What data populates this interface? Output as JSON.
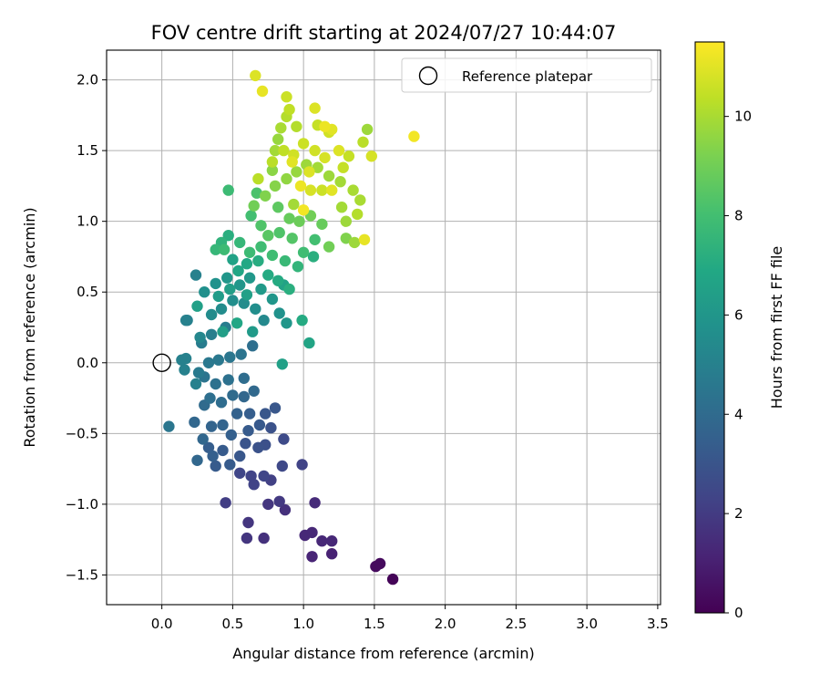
{
  "chart_data": {
    "type": "scatter",
    "title": "FOV centre drift starting at 2024/07/27 10:44:07",
    "xlabel": "Angular distance from reference (arcmin)",
    "ylabel": "Rotation from reference (arcmin)",
    "colorbar_label": "Hours from first FF file",
    "xlim": [
      -0.39,
      3.52
    ],
    "ylim": [
      -1.71,
      2.21
    ],
    "x_ticks": [
      0.0,
      0.5,
      1.0,
      1.5,
      2.0,
      2.5,
      3.0,
      3.5
    ],
    "x_tick_labels": [
      "0.0",
      "0.5",
      "1.0",
      "1.5",
      "2.0",
      "2.5",
      "3.0",
      "3.5"
    ],
    "y_ticks": [
      -1.5,
      -1.0,
      -0.5,
      0.0,
      0.5,
      1.0,
      1.5,
      2.0
    ],
    "y_tick_labels": [
      "−1.5",
      "−1.0",
      "−0.5",
      "0.0",
      "0.5",
      "1.0",
      "1.5",
      "2.0"
    ],
    "color_range": [
      0,
      11.5
    ],
    "colorbar_ticks": [
      0,
      2,
      4,
      6,
      8,
      10
    ],
    "colorbar_tick_labels": [
      "0",
      "2",
      "4",
      "6",
      "8",
      "10"
    ],
    "colormap": "viridis",
    "grid": true,
    "legend": {
      "placement": "top-right",
      "entries": [
        {
          "label": "Reference platepar",
          "marker": "open-circle"
        }
      ]
    },
    "reference_point": {
      "x": 0.0,
      "y": 0.0
    },
    "points": [
      [
        1.63,
        -1.53,
        0.1
      ],
      [
        1.51,
        -1.44,
        0.3
      ],
      [
        1.54,
        -1.42,
        0.3
      ],
      [
        1.06,
        -1.37,
        1.2
      ],
      [
        1.2,
        -1.35,
        1.1
      ],
      [
        1.01,
        -1.22,
        1.3
      ],
      [
        1.06,
        -1.2,
        1.3
      ],
      [
        1.13,
        -1.26,
        1.3
      ],
      [
        1.2,
        -1.26,
        1.3
      ],
      [
        0.72,
        -1.24,
        1.6
      ],
      [
        0.6,
        -1.24,
        1.8
      ],
      [
        0.61,
        -1.13,
        1.8
      ],
      [
        1.08,
        -0.99,
        1.4
      ],
      [
        0.45,
        -0.99,
        2.1
      ],
      [
        0.75,
        -1.0,
        1.8
      ],
      [
        0.83,
        -0.98,
        1.9
      ],
      [
        0.87,
        -1.04,
        1.6
      ],
      [
        0.55,
        -0.78,
        2.4
      ],
      [
        0.63,
        -0.8,
        2.3
      ],
      [
        0.65,
        -0.86,
        2.3
      ],
      [
        0.72,
        -0.8,
        2.4
      ],
      [
        0.77,
        -0.83,
        2.2
      ],
      [
        0.85,
        -0.73,
        2.5
      ],
      [
        0.99,
        -0.72,
        2.3
      ],
      [
        0.86,
        -0.54,
        2.6
      ],
      [
        0.73,
        -0.58,
        2.8
      ],
      [
        0.68,
        -0.6,
        2.9
      ],
      [
        0.59,
        -0.57,
        3.0
      ],
      [
        0.55,
        -0.66,
        3.1
      ],
      [
        0.48,
        -0.72,
        3.3
      ],
      [
        0.38,
        -0.73,
        3.3
      ],
      [
        0.33,
        -0.6,
        3.4
      ],
      [
        0.36,
        -0.66,
        3.5
      ],
      [
        0.25,
        -0.69,
        3.8
      ],
      [
        0.29,
        -0.54,
        3.8
      ],
      [
        0.43,
        -0.62,
        3.3
      ],
      [
        0.49,
        -0.51,
        3.5
      ],
      [
        0.61,
        -0.48,
        3.3
      ],
      [
        0.69,
        -0.44,
        3.2
      ],
      [
        0.77,
        -0.46,
        2.9
      ],
      [
        0.62,
        -0.36,
        3.4
      ],
      [
        0.53,
        -0.36,
        3.6
      ],
      [
        0.43,
        -0.44,
        3.7
      ],
      [
        0.35,
        -0.45,
        3.7
      ],
      [
        0.23,
        -0.42,
        3.8
      ],
      [
        0.3,
        -0.3,
        4.0
      ],
      [
        0.34,
        -0.25,
        4.2
      ],
      [
        0.42,
        -0.28,
        4.1
      ],
      [
        0.5,
        -0.23,
        4.0
      ],
      [
        0.58,
        -0.24,
        3.8
      ],
      [
        0.65,
        -0.2,
        3.9
      ],
      [
        0.73,
        -0.36,
        3.1
      ],
      [
        0.8,
        -0.32,
        3.1
      ],
      [
        0.58,
        -0.11,
        4.1
      ],
      [
        0.47,
        -0.12,
        4.3
      ],
      [
        0.38,
        -0.15,
        4.3
      ],
      [
        0.3,
        -0.1,
        4.4
      ],
      [
        0.33,
        0.0,
        4.6
      ],
      [
        0.4,
        0.02,
        4.6
      ],
      [
        0.48,
        0.04,
        4.5
      ],
      [
        0.56,
        0.06,
        4.4
      ],
      [
        0.64,
        0.12,
        4.2
      ],
      [
        0.28,
        0.14,
        4.8
      ],
      [
        0.35,
        0.2,
        4.9
      ],
      [
        0.45,
        0.25,
        4.8
      ],
      [
        0.05,
        -0.45,
        4.5
      ],
      [
        0.26,
        -0.07,
        4.7
      ],
      [
        0.24,
        -0.15,
        5.0
      ],
      [
        0.16,
        -0.05,
        5.0
      ],
      [
        0.14,
        0.02,
        5.0
      ],
      [
        0.17,
        0.03,
        5.0
      ],
      [
        0.18,
        0.3,
        5.0
      ],
      [
        0.17,
        0.3,
        5.0
      ],
      [
        0.24,
        0.62,
        5.0
      ],
      [
        0.27,
        0.18,
        5.3
      ],
      [
        0.35,
        0.34,
        5.5
      ],
      [
        0.42,
        0.38,
        5.5
      ],
      [
        0.5,
        0.44,
        5.6
      ],
      [
        0.58,
        0.42,
        5.5
      ],
      [
        0.66,
        0.38,
        5.6
      ],
      [
        0.72,
        0.3,
        5.4
      ],
      [
        0.3,
        0.5,
        5.7
      ],
      [
        0.38,
        0.56,
        5.8
      ],
      [
        0.46,
        0.6,
        6.0
      ],
      [
        0.55,
        0.55,
        6.0
      ],
      [
        0.62,
        0.6,
        6.1
      ],
      [
        0.7,
        0.52,
        6.2
      ],
      [
        0.78,
        0.45,
        6.0
      ],
      [
        0.83,
        0.35,
        5.8
      ],
      [
        0.88,
        0.28,
        6.0
      ],
      [
        0.86,
        0.55,
        6.6
      ],
      [
        0.25,
        0.4,
        6.5
      ],
      [
        0.4,
        0.47,
        6.3
      ],
      [
        0.48,
        0.52,
        6.4
      ],
      [
        0.6,
        0.48,
        6.5
      ],
      [
        0.6,
        0.7,
        6.9
      ],
      [
        0.5,
        0.73,
        6.6
      ],
      [
        0.54,
        0.65,
        6.8
      ],
      [
        0.68,
        0.72,
        7.1
      ],
      [
        0.75,
        0.62,
        7.0
      ],
      [
        0.82,
        0.58,
        7.0
      ],
      [
        0.9,
        0.52,
        7.2
      ],
      [
        0.85,
        -0.01,
        6.5
      ],
      [
        1.04,
        0.14,
        6.7
      ],
      [
        0.99,
        0.3,
        7.0
      ],
      [
        0.43,
        0.22,
        6.4
      ],
      [
        0.53,
        0.28,
        6.8
      ],
      [
        0.64,
        0.22,
        6.2
      ],
      [
        0.42,
        0.85,
        7.4
      ],
      [
        0.44,
        0.8,
        7.8
      ],
      [
        0.47,
        0.9,
        7.2
      ],
      [
        0.55,
        0.85,
        7.6
      ],
      [
        0.62,
        0.78,
        7.8
      ],
      [
        0.7,
        0.82,
        7.9
      ],
      [
        0.78,
        0.76,
        7.9
      ],
      [
        0.87,
        0.72,
        7.7
      ],
      [
        0.96,
        0.68,
        7.5
      ],
      [
        1.0,
        0.78,
        7.9
      ],
      [
        0.63,
        1.04,
        8.0
      ],
      [
        0.7,
        0.97,
        8.3
      ],
      [
        0.75,
        0.9,
        8.5
      ],
      [
        0.83,
        0.92,
        8.3
      ],
      [
        0.92,
        0.88,
        8.4
      ],
      [
        0.67,
        1.2,
        8.2
      ],
      [
        0.47,
        1.22,
        7.8
      ],
      [
        0.38,
        0.8,
        7.6
      ],
      [
        1.07,
        0.75,
        7.2
      ],
      [
        1.08,
        0.87,
        8.0
      ],
      [
        0.82,
        1.1,
        8.6
      ],
      [
        0.9,
        1.02,
        8.8
      ],
      [
        0.97,
        1.0,
        8.9
      ],
      [
        1.05,
        1.04,
        9.0
      ],
      [
        1.13,
        0.98,
        8.8
      ],
      [
        1.18,
        0.82,
        9.0
      ],
      [
        1.3,
        0.88,
        9.3
      ],
      [
        1.36,
        0.85,
        9.8
      ],
      [
        1.43,
        0.87,
        11.1
      ],
      [
        0.65,
        1.11,
        9.0
      ],
      [
        0.73,
        1.18,
        9.3
      ],
      [
        0.8,
        1.25,
        9.4
      ],
      [
        0.88,
        1.3,
        9.6
      ],
      [
        0.95,
        1.35,
        9.7
      ],
      [
        1.02,
        1.4,
        9.8
      ],
      [
        1.1,
        1.38,
        9.9
      ],
      [
        1.18,
        1.32,
        9.8
      ],
      [
        1.26,
        1.28,
        9.9
      ],
      [
        1.35,
        1.22,
        10.0
      ],
      [
        1.4,
        1.15,
        10.0
      ],
      [
        1.38,
        1.05,
        10.2
      ],
      [
        1.3,
        1.0,
        9.8
      ],
      [
        0.68,
        1.3,
        10.3
      ],
      [
        0.78,
        1.42,
        10.3
      ],
      [
        0.86,
        1.5,
        10.4
      ],
      [
        0.93,
        1.47,
        10.7
      ],
      [
        1.0,
        1.55,
        10.6
      ],
      [
        1.08,
        1.5,
        10.7
      ],
      [
        1.15,
        1.45,
        10.8
      ],
      [
        1.25,
        1.5,
        10.9
      ],
      [
        1.32,
        1.46,
        10.5
      ],
      [
        1.42,
        1.56,
        10.3
      ],
      [
        1.45,
        1.65,
        9.8
      ],
      [
        1.48,
        1.46,
        10.8
      ],
      [
        1.1,
        1.68,
        10.5
      ],
      [
        1.18,
        1.63,
        10.7
      ],
      [
        1.15,
        1.67,
        11.2
      ],
      [
        1.2,
        1.65,
        11.0
      ],
      [
        0.95,
        1.67,
        10.2
      ],
      [
        1.04,
        1.35,
        10.9
      ],
      [
        1.2,
        1.22,
        11.0
      ],
      [
        0.98,
        1.25,
        11.2
      ],
      [
        1.0,
        1.08,
        11.3
      ],
      [
        1.13,
        1.22,
        10.6
      ],
      [
        1.28,
        1.38,
        10.5
      ],
      [
        0.88,
        1.88,
        10.6
      ],
      [
        0.9,
        1.79,
        10.4
      ],
      [
        0.88,
        1.74,
        10.2
      ],
      [
        0.84,
        1.66,
        10.0
      ],
      [
        0.82,
        1.58,
        9.7
      ],
      [
        0.8,
        1.5,
        9.9
      ],
      [
        0.78,
        1.36,
        9.5
      ],
      [
        1.08,
        1.8,
        10.9
      ],
      [
        0.66,
        2.03,
        10.9
      ],
      [
        0.71,
        1.92,
        11.1
      ],
      [
        1.78,
        1.6,
        11.3
      ],
      [
        0.92,
        1.42,
        11.0
      ],
      [
        1.05,
        1.22,
        10.8
      ],
      [
        0.93,
        1.12,
        9.9
      ],
      [
        1.27,
        1.1,
        9.9
      ]
    ]
  }
}
